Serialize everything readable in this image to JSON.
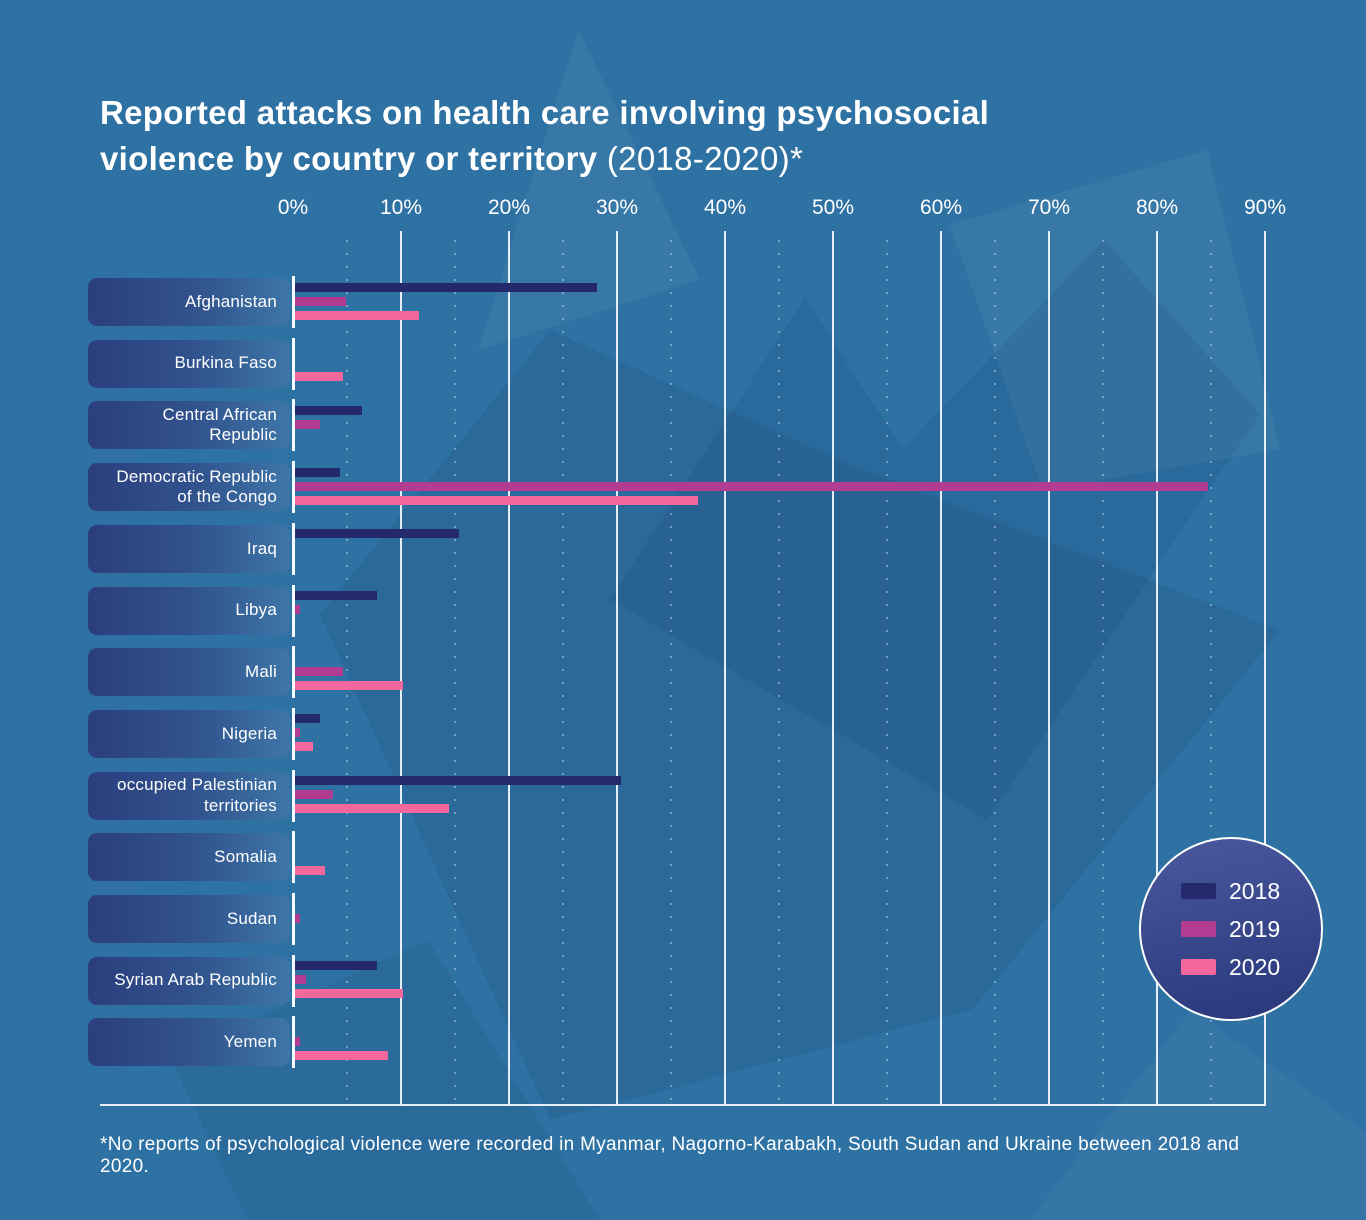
{
  "title": {
    "bold": "Reported attacks on health care involving psychosocial violence by country or territory",
    "suffix": "(2018-2020)*"
  },
  "axis": {
    "ticks": [
      "0%",
      "10%",
      "20%",
      "30%",
      "40%",
      "50%",
      "60%",
      "70%",
      "80%",
      "90%"
    ],
    "min": 0,
    "max": 90,
    "unit": "percent"
  },
  "legend": {
    "items": [
      {
        "label": "2018",
        "color": "#24296b"
      },
      {
        "label": "2019",
        "color": "#b23c91"
      },
      {
        "label": "2020",
        "color": "#f4679d"
      }
    ]
  },
  "footnote": "*No reports of psychological violence were recorded in Myanmar, Nagorno-Karabakh, South Sudan and Ukraine between 2018 and 2020.",
  "chart_data": {
    "type": "bar",
    "orientation": "horizontal",
    "title": "Reported attacks on health care involving psychosocial violence by country or territory (2018-2020)",
    "xlabel": "",
    "ylabel": "",
    "xlim": [
      0,
      90
    ],
    "grid": true,
    "minor_grid_step_percent": 5,
    "legend_position": "bottom-right-circle",
    "categories": [
      "Afghanistan",
      "Burkina Faso",
      "Central African Republic",
      "Democratic Republic of the Congo",
      "Iraq",
      "Libya",
      "Mali",
      "Nigeria",
      "occupied Palestinian territories",
      "Somalia",
      "Sudan",
      "Syrian Arab Republic",
      "Yemen"
    ],
    "series": [
      {
        "name": "2018",
        "color": "#24296b",
        "values": [
          28,
          null,
          6.2,
          4.2,
          15.2,
          7.6,
          null,
          2.3,
          30.2,
          null,
          null,
          7.6,
          null
        ]
      },
      {
        "name": "2019",
        "color": "#b23c91",
        "values": [
          4.7,
          null,
          2.3,
          84.5,
          null,
          0.5,
          4.4,
          0.5,
          3.5,
          null,
          0.5,
          1,
          0.5
        ]
      },
      {
        "name": "2020",
        "color": "#f4679d",
        "values": [
          11.5,
          4.4,
          null,
          37.3,
          null,
          null,
          10,
          1.7,
          14.3,
          2.8,
          null,
          10,
          8.6
        ]
      }
    ]
  }
}
